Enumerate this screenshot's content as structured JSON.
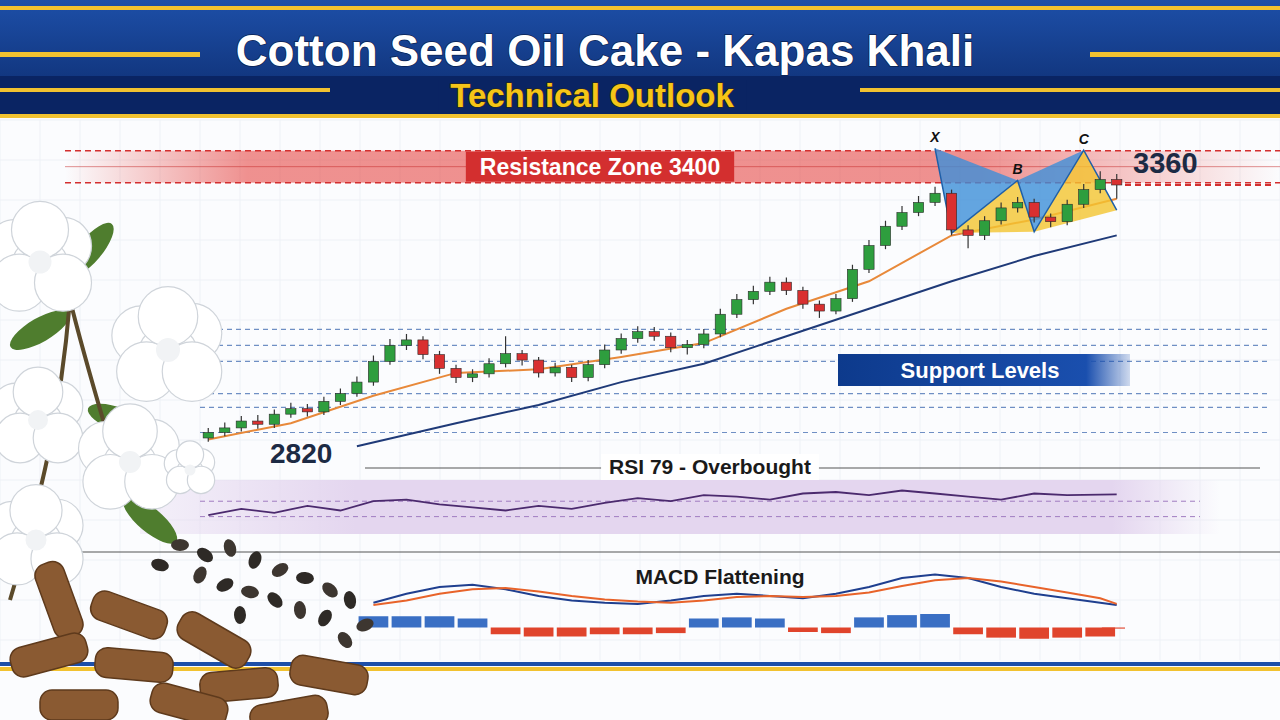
{
  "chart_data": [
    {
      "type": "candlestick",
      "title": "Cotton Seed Oil Cake - Kapas Khali",
      "subtitle": "Technical Outlook",
      "xlim": [
        -0.5,
        55.5
      ],
      "ylim": [
        2760,
        3480
      ],
      "tick_labels": false,
      "grid": false,
      "open": [
        2808,
        2820,
        2830,
        2845,
        2838,
        2860,
        2872,
        2865,
        2888,
        2905,
        2930,
        2975,
        3010,
        3022,
        2990,
        2960,
        2940,
        2948,
        2970,
        2992,
        2978,
        2950,
        2962,
        2940,
        2968,
        3000,
        3025,
        3040,
        3030,
        3005,
        3012,
        3035,
        3078,
        3110,
        3128,
        3148,
        3130,
        3100,
        3085,
        3112,
        3176,
        3228,
        3270,
        3300,
        3322,
        3342,
        3262,
        3250,
        3282,
        3310,
        3322,
        3290,
        3280,
        3318,
        3350,
        3372
      ],
      "high": [
        2830,
        2842,
        2856,
        2858,
        2870,
        2885,
        2882,
        2898,
        2916,
        2942,
        2988,
        3024,
        3035,
        3030,
        2998,
        2968,
        2958,
        2982,
        3030,
        3000,
        2985,
        2972,
        2968,
        2978,
        3012,
        3036,
        3052,
        3050,
        3038,
        3022,
        3046,
        3090,
        3122,
        3140,
        3160,
        3158,
        3138,
        3108,
        3122,
        3186,
        3240,
        3282,
        3314,
        3336,
        3356,
        3350,
        3272,
        3292,
        3322,
        3334,
        3330,
        3298,
        3328,
        3362,
        3390,
        3384
      ],
      "low": [
        2800,
        2812,
        2822,
        2828,
        2830,
        2852,
        2855,
        2858,
        2880,
        2898,
        2922,
        2968,
        3000,
        2980,
        2948,
        2928,
        2930,
        2940,
        2962,
        2966,
        2940,
        2942,
        2930,
        2932,
        2960,
        2992,
        3016,
        3020,
        2995,
        2990,
        3004,
        3028,
        3070,
        3100,
        3120,
        3120,
        3090,
        3070,
        3078,
        3105,
        3168,
        3220,
        3262,
        3292,
        3314,
        3250,
        3222,
        3240,
        3274,
        3300,
        3278,
        3268,
        3272,
        3310,
        3342,
        3330
      ],
      "close": [
        2820,
        2830,
        2845,
        2838,
        2860,
        2872,
        2865,
        2888,
        2905,
        2930,
        2975,
        3010,
        3022,
        2990,
        2960,
        2940,
        2948,
        2970,
        2992,
        2978,
        2950,
        2962,
        2940,
        2968,
        3000,
        3025,
        3040,
        3030,
        3005,
        3012,
        3035,
        3078,
        3110,
        3128,
        3148,
        3130,
        3100,
        3085,
        3112,
        3176,
        3228,
        3270,
        3300,
        3322,
        3342,
        3262,
        3250,
        3282,
        3310,
        3322,
        3290,
        3280,
        3318,
        3350,
        3372,
        3360
      ],
      "series": [
        {
          "type": "line",
          "color": "#e8893a",
          "x": [
            0,
            5,
            10,
            15,
            20,
            25,
            30,
            35,
            40,
            45,
            50,
            55
          ],
          "values": [
            2805,
            2840,
            2900,
            2950,
            2958,
            2985,
            3015,
            3090,
            3150,
            3250,
            3285,
            3330
          ]
        },
        {
          "type": "line",
          "color": "#1f3a78",
          "x": [
            9,
            15,
            20,
            25,
            30,
            35,
            40,
            45,
            50,
            55
          ],
          "values": [
            2790,
            2840,
            2880,
            2930,
            2970,
            3030,
            3090,
            3150,
            3205,
            3250
          ]
        }
      ],
      "pattern": {
        "labels": [
          "X",
          null,
          "B",
          null,
          "C",
          null
        ],
        "x": [
          44,
          45,
          49,
          50,
          53,
          55
        ],
        "values": [
          3440,
          3255,
          3370,
          3258,
          3436,
          3305
        ]
      },
      "resistance": {
        "value": 3400,
        "label": "Resistance Zone 3400"
      },
      "support": {
        "label": "Support Levels",
        "values": [
          3045,
          3010,
          2975,
          2905,
          2875,
          2820
        ]
      },
      "start_price": {
        "value": 2820,
        "label": "2820"
      },
      "last_price": {
        "value": 3360,
        "label": "3360"
      }
    },
    {
      "type": "line",
      "title": "RSI 79 - Overbought",
      "xlim": [
        -0.5,
        55.5
      ],
      "ylim": [
        30,
        95
      ],
      "tick_labels": false,
      "x": [
        0,
        2,
        4,
        6,
        8,
        10,
        12,
        14,
        16,
        18,
        20,
        22,
        24,
        26,
        28,
        30,
        32,
        34,
        36,
        38,
        40,
        42,
        44,
        46,
        48,
        50,
        52,
        55
      ],
      "values": [
        52,
        60,
        55,
        64,
        58,
        70,
        72,
        66,
        62,
        58,
        64,
        60,
        68,
        74,
        70,
        78,
        76,
        72,
        80,
        82,
        78,
        84,
        80,
        76,
        72,
        80,
        78,
        79
      ],
      "color": "#4b2a6e",
      "levels": [
        70,
        50
      ]
    },
    {
      "type": "line",
      "title": "MACD Flattening",
      "xlim": [
        -0.5,
        55.5
      ],
      "ylim": [
        -20,
        60
      ],
      "tick_labels": false,
      "x": [
        10,
        12,
        14,
        16,
        18,
        20,
        22,
        24,
        26,
        28,
        30,
        32,
        34,
        36,
        38,
        40,
        42,
        44,
        46,
        48,
        50,
        52,
        54,
        55
      ],
      "series": [
        {
          "color": "#1f3f8f",
          "values": [
            22,
            30,
            36,
            38,
            34,
            28,
            24,
            22,
            21,
            24,
            28,
            30,
            28,
            26,
            30,
            36,
            44,
            47,
            44,
            36,
            30,
            26,
            22,
            20
          ]
        },
        {
          "color": "#e8632a",
          "values": [
            20,
            24,
            30,
            34,
            35,
            32,
            28,
            25,
            23,
            22,
            24,
            27,
            28,
            27,
            28,
            31,
            37,
            42,
            44,
            41,
            36,
            31,
            26,
            21
          ]
        },
        {
          "type": "bar",
          "values": [
            10,
            10,
            10,
            8,
            -6,
            -8,
            -8,
            -6,
            -6,
            -5,
            8,
            9,
            8,
            -4,
            -5,
            9,
            11,
            12,
            -6,
            -9,
            -10,
            -9,
            -8,
            -1
          ]
        }
      ]
    }
  ]
}
